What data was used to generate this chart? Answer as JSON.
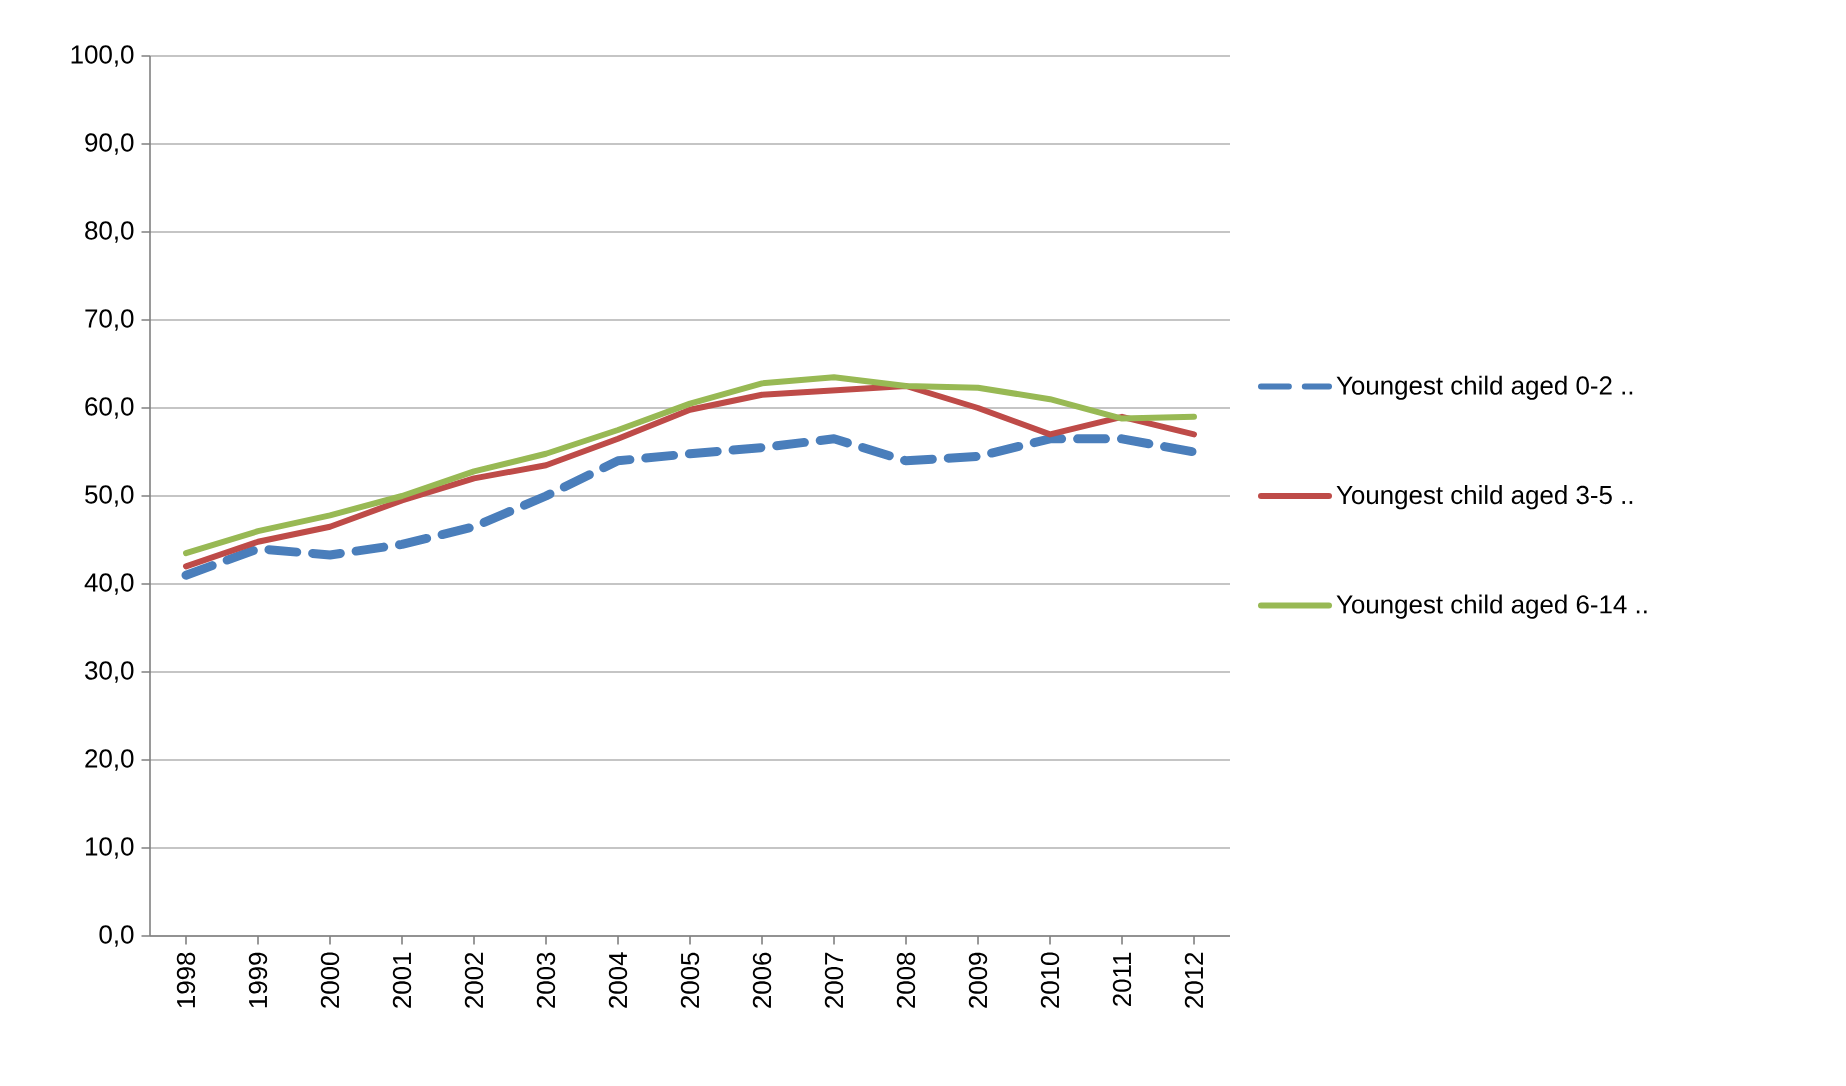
{
  "chart_data": {
    "type": "line",
    "categories": [
      "1998",
      "1999",
      "2000",
      "2001",
      "2002",
      "2003",
      "2004",
      "2005",
      "2006",
      "2007",
      "2008",
      "2009",
      "2010",
      "2011",
      "2012"
    ],
    "series": [
      {
        "name": "Youngest child aged 0-2 ..",
        "color": "#4a7ebb",
        "line_style": "dashed",
        "values": [
          41.0,
          44.0,
          43.3,
          44.5,
          46.5,
          50.0,
          54.0,
          54.8,
          55.5,
          56.5,
          54.0,
          54.5,
          56.5,
          56.5,
          55.0
        ]
      },
      {
        "name": "Youngest child aged 3-5 ..",
        "color": "#be4b48",
        "line_style": "solid",
        "values": [
          42.0,
          44.8,
          46.5,
          49.5,
          52.0,
          53.5,
          56.5,
          59.8,
          61.5,
          62.0,
          62.5,
          60.0,
          57.0,
          59.0,
          57.0
        ]
      },
      {
        "name": "Youngest child aged 6-14 ..",
        "color": "#98b954",
        "line_style": "solid",
        "values": [
          43.5,
          46.0,
          47.8,
          50.0,
          52.8,
          54.8,
          57.5,
          60.5,
          62.8,
          63.5,
          62.5,
          62.3,
          61.0,
          58.8,
          59.0
        ]
      }
    ],
    "ylim": [
      0,
      100
    ],
    "yticks": [
      {
        "value": 0,
        "label": "0,0"
      },
      {
        "value": 10,
        "label": "10,0"
      },
      {
        "value": 20,
        "label": "20,0"
      },
      {
        "value": 30,
        "label": "30,0"
      },
      {
        "value": 40,
        "label": "40,0"
      },
      {
        "value": 50,
        "label": "50,0"
      },
      {
        "value": 60,
        "label": "60,0"
      },
      {
        "value": 70,
        "label": "70,0"
      },
      {
        "value": 80,
        "label": "80,0"
      },
      {
        "value": 90,
        "label": "90,0"
      },
      {
        "value": 100,
        "label": "100,0"
      }
    ],
    "grid": "y",
    "legend": "right",
    "marker": "none"
  }
}
